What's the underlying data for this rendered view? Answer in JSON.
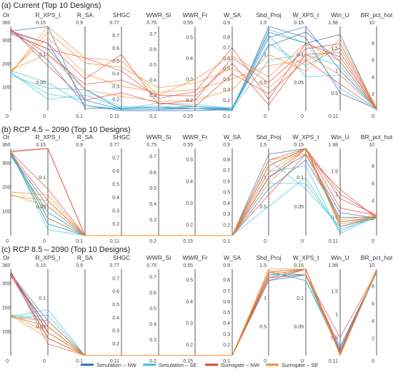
{
  "chart_data": [
    {
      "type": "parallel-coordinates",
      "title": "(a) Current (Top 10 Designs)",
      "axes": [
        {
          "name": "Or",
          "min": 0,
          "max": 360,
          "ticks": [
            0,
            100,
            200,
            300
          ]
        },
        {
          "name": "R_XPS_t",
          "min": 0,
          "max": 0.15,
          "ticks": [
            0.05,
            0.1
          ]
        },
        {
          "name": "R_SA",
          "min": 0.1,
          "max": 0.9,
          "ticks": []
        },
        {
          "name": "SHGC",
          "min": 0.11,
          "max": 0.77,
          "ticks": [
            0.2,
            0.3,
            0.4,
            0.5,
            0.6,
            0.7
          ]
        },
        {
          "name": "WWR_Si",
          "min": 0.2,
          "max": 0.75,
          "ticks": [
            0.3,
            0.4,
            0.5,
            0.6,
            0.7
          ]
        },
        {
          "name": "WWR_Fr",
          "min": 0.15,
          "max": 0.55,
          "ticks": [
            0.2,
            0.3,
            0.4,
            0.5
          ]
        },
        {
          "name": "W_SA",
          "min": 0.1,
          "max": 0.9,
          "ticks": [
            0.2,
            0.3,
            0.4,
            0.5,
            0.6,
            0.7,
            0.8
          ]
        },
        {
          "name": "Shd_Proj",
          "min": 0,
          "max": 1.5,
          "ticks": [
            0.5,
            1
          ]
        },
        {
          "name": "W_XPS_t",
          "min": 0,
          "max": 0.15,
          "ticks": [
            0.05,
            0.1
          ]
        },
        {
          "name": "Win_U",
          "min": 0.11,
          "max": 1.98,
          "ticks": [
            0.5,
            1,
            1.5
          ]
        },
        {
          "name": "BR_pct_hot",
          "min": 0,
          "max": 10,
          "ticks": [
            2,
            4,
            6,
            8
          ]
        }
      ],
      "series": [
        {
          "name": "Simulation – NW",
          "color": "#2f6bb5",
          "lines": [
            [
              330,
              0.11,
              0.3,
              0.12,
              0.21,
              0.16,
              0.12,
              1.15,
              0.14,
              1.2,
              0.2
            ],
            [
              340,
              0.15,
              0.12,
              0.13,
              0.22,
              0.17,
              0.11,
              1.4,
              0.12,
              1.8,
              0.1
            ],
            [
              345,
              0.09,
              0.15,
              0.11,
              0.2,
              0.15,
              0.11,
              1.3,
              0.15,
              1.0,
              0.3
            ],
            [
              335,
              0.12,
              0.2,
              0.12,
              0.21,
              0.16,
              0.1,
              1.5,
              0.13,
              0.5,
              0.2
            ]
          ]
        },
        {
          "name": "Simulation – SE",
          "color": "#3cc0d8",
          "lines": [
            [
              160,
              0.03,
              0.2,
              0.12,
              0.25,
              0.18,
              0.12,
              1.2,
              0.08,
              1.5,
              0.3
            ],
            [
              150,
              0.04,
              0.3,
              0.14,
              0.22,
              0.16,
              0.13,
              1.35,
              0.06,
              0.9,
              0.2
            ],
            [
              170,
              0.05,
              0.15,
              0.12,
              0.21,
              0.17,
              0.12,
              0.9,
              0.1,
              1.1,
              0.2
            ],
            [
              165,
              0.02,
              0.25,
              0.13,
              0.23,
              0.16,
              0.11,
              1.45,
              0.12,
              0.6,
              0.1
            ]
          ]
        },
        {
          "name": "Surrogate – NW",
          "color": "#e0453a",
          "lines": [
            [
              345,
              0.1,
              0.35,
              0.35,
              0.3,
              0.22,
              0.55,
              0.1,
              0.1,
              1.4,
              0.2
            ],
            [
              340,
              0.12,
              0.4,
              0.55,
              0.24,
              0.2,
              0.6,
              0.5,
              0.11,
              1.6,
              0.3
            ],
            [
              350,
              0.08,
              0.2,
              0.25,
              0.25,
              0.17,
              0.45,
              0.3,
              0.09,
              0.7,
              0.2
            ],
            [
              330,
              0.11,
              0.6,
              0.42,
              0.28,
              0.24,
              0.7,
              0.2,
              0.12,
              1.3,
              0.3
            ]
          ]
        },
        {
          "name": "Surrogate – SE",
          "color": "#f58a2a",
          "lines": [
            [
              170,
              0.13,
              0.45,
              0.3,
              0.32,
              0.25,
              0.4,
              0.8,
              0.09,
              1.5,
              0.3
            ],
            [
              160,
              0.15,
              0.6,
              0.5,
              0.3,
              0.3,
              0.62,
              0.6,
              0.12,
              1.2,
              0.2
            ],
            [
              175,
              0.1,
              0.3,
              0.22,
              0.26,
              0.2,
              0.3,
              1.0,
              0.07,
              1.7,
              0.3
            ],
            [
              165,
              0.14,
              0.55,
              0.45,
              0.35,
              0.28,
              0.5,
              0.4,
              0.1,
              0.9,
              0.3
            ]
          ]
        }
      ]
    },
    {
      "type": "parallel-coordinates",
      "title": "(b) RCP 4.5 – 2090 (Top 10 Designs)",
      "axes": [
        {
          "name": "Or",
          "min": 0,
          "max": 360,
          "ticks": [
            0,
            100,
            200,
            300
          ]
        },
        {
          "name": "R_XPS_t",
          "min": 0,
          "max": 0.15,
          "ticks": [
            0.05,
            0.1
          ]
        },
        {
          "name": "R_SA",
          "min": 0.1,
          "max": 0.9,
          "ticks": []
        },
        {
          "name": "SHGC",
          "min": 0.11,
          "max": 0.77,
          "ticks": [
            0.2,
            0.3,
            0.4,
            0.5,
            0.6,
            0.7
          ]
        },
        {
          "name": "WWR_Si",
          "min": 0.2,
          "max": 0.75,
          "ticks": [
            0.3,
            0.4,
            0.5,
            0.6,
            0.7
          ]
        },
        {
          "name": "WWR_Fr",
          "min": 0.15,
          "max": 0.55,
          "ticks": [
            0.2,
            0.3,
            0.4,
            0.5
          ]
        },
        {
          "name": "W_SA",
          "min": 0.1,
          "max": 0.9,
          "ticks": [
            0.2,
            0.3,
            0.4,
            0.5,
            0.6,
            0.7,
            0.8
          ]
        },
        {
          "name": "Shd_Proj",
          "min": 0,
          "max": 1.5,
          "ticks": [
            0.5,
            1
          ]
        },
        {
          "name": "W_XPS_t",
          "min": 0,
          "max": 0.15,
          "ticks": [
            0.05,
            0.1
          ]
        },
        {
          "name": "Win_U",
          "min": 0.11,
          "max": 1.98,
          "ticks": [
            0.5,
            1,
            1.5
          ]
        },
        {
          "name": "BR_pct_hot",
          "min": 0,
          "max": 10,
          "ticks": [
            2,
            4,
            6,
            8
          ]
        }
      ],
      "series": [
        {
          "name": "Simulation – NW",
          "color": "#2f6bb5",
          "lines": [
            [
              345,
              0.03,
              0.1,
              0.11,
              0.2,
              0.15,
              0.1,
              1.2,
              0.15,
              0.4,
              2.1
            ],
            [
              330,
              0.04,
              0.1,
              0.11,
              0.2,
              0.15,
              0.1,
              1.0,
              0.14,
              0.6,
              2.0
            ],
            [
              340,
              0.02,
              0.1,
              0.11,
              0.2,
              0.15,
              0.1,
              1.4,
              0.15,
              0.3,
              2.2
            ],
            [
              335,
              0.05,
              0.1,
              0.11,
              0.2,
              0.15,
              0.1,
              0.8,
              0.13,
              0.5,
              2.1
            ]
          ]
        },
        {
          "name": "Simulation – SE",
          "color": "#3cc0d8",
          "lines": [
            [
              345,
              0.02,
              0.1,
              0.11,
              0.2,
              0.15,
              0.1,
              0.5,
              0.1,
              0.2,
              2.3
            ],
            [
              340,
              0.03,
              0.1,
              0.11,
              0.2,
              0.15,
              0.1,
              1.3,
              0.08,
              0.3,
              2.1
            ],
            [
              330,
              0.04,
              0.1,
              0.11,
              0.2,
              0.15,
              0.1,
              1.1,
              0.12,
              0.15,
              2.2
            ],
            [
              350,
              0.01,
              0.1,
              0.11,
              0.2,
              0.15,
              0.1,
              0.9,
              0.09,
              0.25,
              2.0
            ]
          ]
        },
        {
          "name": "Surrogate – NW",
          "color": "#e0453a",
          "lines": [
            [
              350,
              0.15,
              0.1,
              0.11,
              0.2,
              0.15,
              0.1,
              1.0,
              0.15,
              1.0,
              2.2
            ],
            [
              345,
              0.15,
              0.1,
              0.11,
              0.2,
              0.15,
              0.1,
              1.3,
              0.15,
              0.9,
              2.4
            ],
            [
              340,
              0.06,
              0.1,
              0.11,
              0.2,
              0.15,
              0.1,
              0.7,
              0.14,
              1.1,
              2.0
            ],
            [
              345,
              0.08,
              0.1,
              0.11,
              0.2,
              0.15,
              0.1,
              1.2,
              0.15,
              0.7,
              2.3
            ]
          ]
        },
        {
          "name": "Surrogate – SE",
          "color": "#f58a2a",
          "lines": [
            [
              170,
              0.05,
              0.1,
              0.11,
              0.2,
              0.15,
              0.1,
              1.1,
              0.15,
              0.35,
              2.1
            ],
            [
              180,
              0.07,
              0.1,
              0.11,
              0.2,
              0.15,
              0.1,
              1.3,
              0.14,
              0.4,
              2.2
            ],
            [
              350,
              0.03,
              0.1,
              0.11,
              0.2,
              0.15,
              0.1,
              0.9,
              0.15,
              0.3,
              2.0
            ],
            [
              165,
              0.06,
              0.1,
              0.11,
              0.2,
              0.15,
              0.1,
              1.2,
              0.15,
              0.45,
              2.3
            ]
          ]
        }
      ]
    },
    {
      "type": "parallel-coordinates",
      "title": "(c) RCP 8.5 – 2090 (Top 10 Designs)",
      "axes": [
        {
          "name": "Or",
          "min": 0,
          "max": 360,
          "ticks": [
            0,
            100,
            200,
            300
          ]
        },
        {
          "name": "R_XPS_t",
          "min": 0,
          "max": 0.15,
          "ticks": [
            0.05,
            0.1
          ]
        },
        {
          "name": "R_SA",
          "min": 0.1,
          "max": 0.9,
          "ticks": []
        },
        {
          "name": "SHGC",
          "min": 0.11,
          "max": 0.77,
          "ticks": [
            0.2,
            0.3,
            0.4,
            0.5,
            0.6,
            0.7
          ]
        },
        {
          "name": "WWR_Si",
          "min": 0.2,
          "max": 0.75,
          "ticks": [
            0.3,
            0.4,
            0.5,
            0.6,
            0.7
          ]
        },
        {
          "name": "WWR_Fr",
          "min": 0.15,
          "max": 0.55,
          "ticks": [
            0.2,
            0.3,
            0.4,
            0.5
          ]
        },
        {
          "name": "W_SA",
          "min": 0.1,
          "max": 0.9,
          "ticks": [
            0.2,
            0.3,
            0.4,
            0.5,
            0.6,
            0.7,
            0.8
          ]
        },
        {
          "name": "Shd_Proj",
          "min": 0,
          "max": 1.5,
          "ticks": [
            0.5,
            1
          ]
        },
        {
          "name": "W_XPS_t",
          "min": 0,
          "max": 0.15,
          "ticks": [
            0.05,
            0.1
          ]
        },
        {
          "name": "Win_U",
          "min": 0.11,
          "max": 1.98,
          "ticks": [
            0.5,
            1,
            1.5
          ]
        },
        {
          "name": "BR_pct_hot",
          "min": 0,
          "max": 10,
          "ticks": [
            2,
            4,
            6,
            8
          ]
        }
      ],
      "series": [
        {
          "name": "Simulation – NW",
          "color": "#2f6bb5",
          "lines": [
            [
              330,
              0.05,
              0.1,
              0.11,
              0.2,
              0.15,
              0.1,
              1.4,
              0.14,
              0.2,
              9.8
            ],
            [
              345,
              0.04,
              0.1,
              0.11,
              0.2,
              0.15,
              0.1,
              1.35,
              0.15,
              0.15,
              9.9
            ],
            [
              340,
              0.06,
              0.1,
              0.11,
              0.2,
              0.15,
              0.1,
              1.3,
              0.14,
              0.3,
              9.7
            ],
            [
              350,
              0.03,
              0.1,
              0.11,
              0.2,
              0.15,
              0.1,
              1.45,
              0.13,
              0.25,
              9.8
            ]
          ]
        },
        {
          "name": "Simulation – SE",
          "color": "#3cc0d8",
          "lines": [
            [
              160,
              0.08,
              0.1,
              0.11,
              0.2,
              0.15,
              0.1,
              1.3,
              0.14,
              0.15,
              9.6
            ],
            [
              170,
              0.06,
              0.1,
              0.11,
              0.2,
              0.15,
              0.1,
              1.4,
              0.14,
              0.2,
              9.7
            ],
            [
              155,
              0.07,
              0.1,
              0.11,
              0.2,
              0.15,
              0.1,
              1.35,
              0.15,
              0.12,
              9.8
            ],
            [
              165,
              0.05,
              0.1,
              0.11,
              0.2,
              0.15,
              0.1,
              1.45,
              0.13,
              0.18,
              9.9
            ]
          ]
        },
        {
          "name": "Surrogate – NW",
          "color": "#e0453a",
          "lines": [
            [
              345,
              0.04,
              0.1,
              0.11,
              0.2,
              0.15,
              0.1,
              1.45,
              0.15,
              0.11,
              9.9
            ],
            [
              335,
              0.03,
              0.1,
              0.11,
              0.2,
              0.15,
              0.1,
              1.4,
              0.15,
              0.2,
              9.8
            ],
            [
              340,
              0.05,
              0.1,
              0.11,
              0.2,
              0.15,
              0.1,
              1.35,
              0.14,
              0.5,
              9.7
            ],
            [
              350,
              0.02,
              0.1,
              0.11,
              0.2,
              0.15,
              0.1,
              1.3,
              0.15,
              0.15,
              10.0
            ]
          ]
        },
        {
          "name": "Surrogate – SE",
          "color": "#f58a2a",
          "lines": [
            [
              165,
              0.05,
              0.1,
              0.11,
              0.2,
              0.15,
              0.1,
              1.45,
              0.15,
              0.11,
              10.0
            ],
            [
              170,
              0.04,
              0.1,
              0.11,
              0.2,
              0.15,
              0.1,
              1.4,
              0.15,
              0.15,
              9.9
            ],
            [
              160,
              0.06,
              0.1,
              0.11,
              0.2,
              0.15,
              0.1,
              1.5,
              0.15,
              0.12,
              9.8
            ],
            [
              168,
              0.03,
              0.1,
              0.11,
              0.2,
              0.15,
              0.1,
              1.45,
              0.14,
              0.13,
              9.9
            ]
          ]
        }
      ]
    }
  ],
  "legend": [
    {
      "label": "Simulation – NW",
      "color": "#2f6bb5"
    },
    {
      "label": "Simulation – SE",
      "color": "#3cc0d8"
    },
    {
      "label": "Surrogate – NW",
      "color": "#e0453a"
    },
    {
      "label": "Surrogate – SE",
      "color": "#f58a2a"
    }
  ]
}
